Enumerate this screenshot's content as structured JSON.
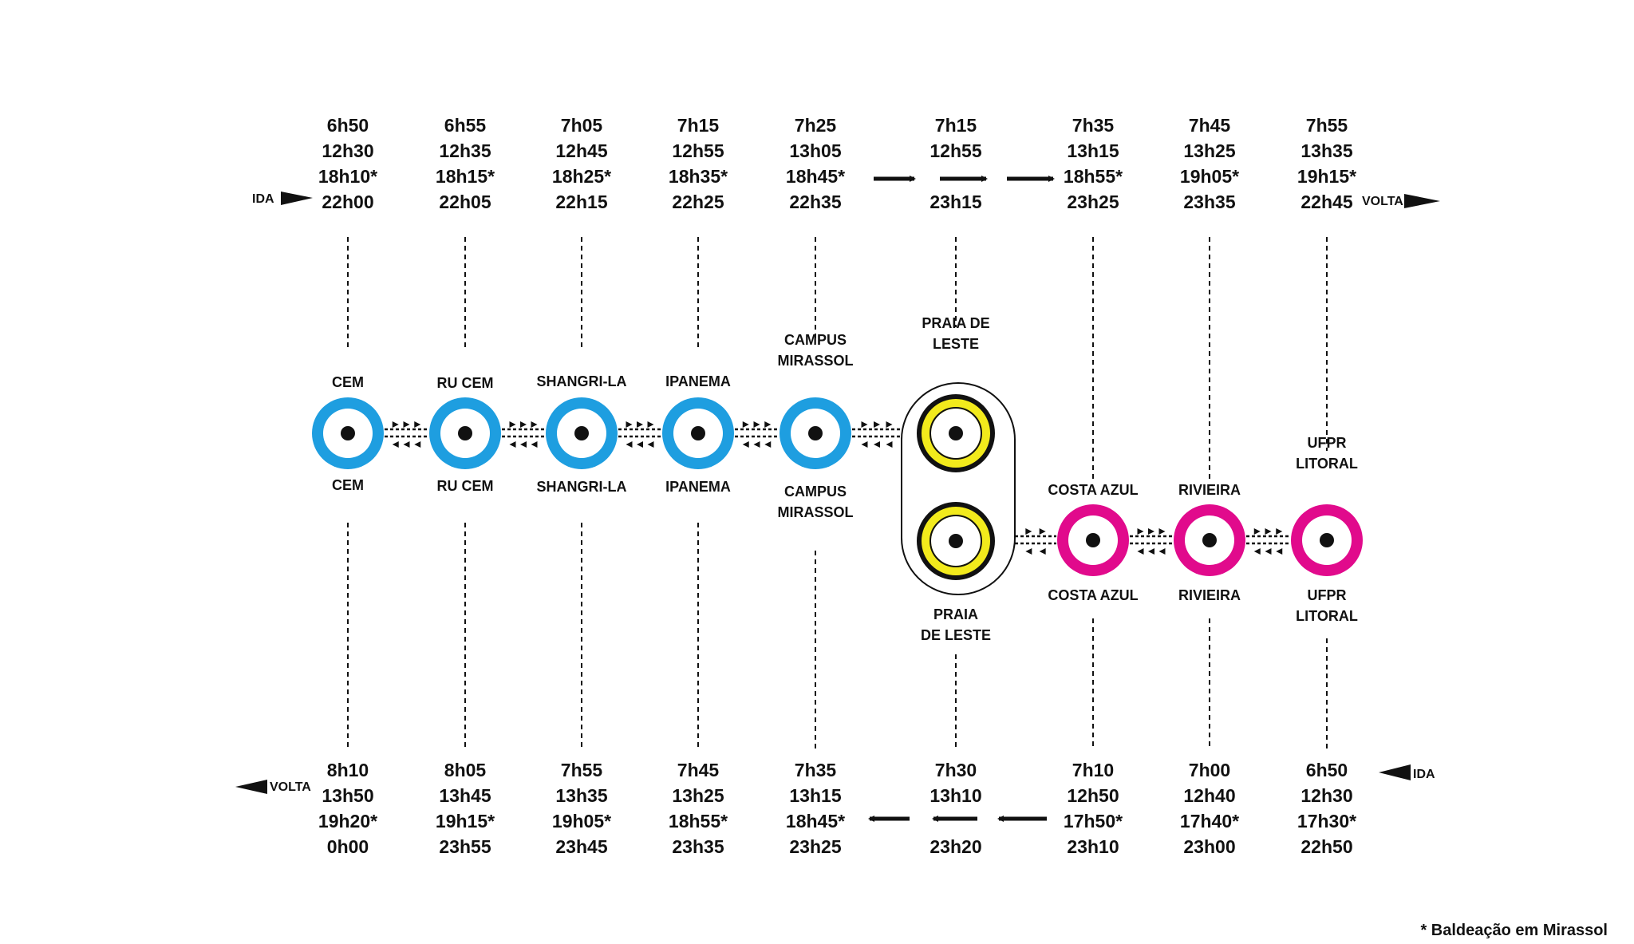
{
  "colors": {
    "blue": "#1e9ee0",
    "yellow": "#f2ea1c",
    "magenta": "#e10a8c",
    "ink": "#111111",
    "background": "#ffffff"
  },
  "direction_labels": {
    "top_left": "IDA",
    "top_right": "VOLTA",
    "bottom_left": "VOLTA",
    "bottom_right": "IDA"
  },
  "footnote": "* Baldeação em Mirassol",
  "stations": [
    {
      "id": "cem",
      "color": "blue",
      "top_label": [
        "CEM"
      ],
      "bottom_label": [
        "CEM"
      ],
      "times_top": [
        "6h50",
        "12h30",
        "18h10*",
        "22h00"
      ],
      "times_bottom": [
        "8h10",
        "13h50",
        "19h20*",
        "0h00"
      ]
    },
    {
      "id": "ru-cem",
      "color": "blue",
      "top_label": [
        "RU CEM"
      ],
      "bottom_label": [
        "RU CEM"
      ],
      "times_top": [
        "6h55",
        "12h35",
        "18h15*",
        "22h05"
      ],
      "times_bottom": [
        "8h05",
        "13h45",
        "19h15*",
        "23h55"
      ]
    },
    {
      "id": "shangri-la",
      "color": "blue",
      "top_label": [
        "SHANGRI-LA"
      ],
      "bottom_label": [
        "SHANGRI-LA"
      ],
      "times_top": [
        "7h05",
        "12h45",
        "18h25*",
        "22h15"
      ],
      "times_bottom": [
        "7h55",
        "13h35",
        "19h05*",
        "23h45"
      ]
    },
    {
      "id": "ipanema",
      "color": "blue",
      "top_label": [
        "IPANEMA"
      ],
      "bottom_label": [
        "IPANEMA"
      ],
      "times_top": [
        "7h15",
        "12h55",
        "18h35*",
        "22h25"
      ],
      "times_bottom": [
        "7h45",
        "13h25",
        "18h55*",
        "23h35"
      ]
    },
    {
      "id": "campus-mirassol",
      "color": "blue",
      "top_label": [
        "CAMPUS",
        "MIRASSOL"
      ],
      "bottom_label": [
        "CAMPUS",
        "MIRASSOL"
      ],
      "times_top": [
        "7h25",
        "13h05",
        "18h45*",
        "22h35"
      ],
      "times_bottom": [
        "7h35",
        "13h15",
        "18h45*",
        "23h25"
      ]
    },
    {
      "id": "praia-de-leste",
      "color": "yellow",
      "top_label": [
        "PRAIA DE",
        "LESTE"
      ],
      "bottom_label": [
        "PRAIA",
        "DE LESTE"
      ],
      "times_top": [
        "7h15",
        "12h55",
        "",
        "23h15"
      ],
      "times_bottom": [
        "7h30",
        "13h10",
        "",
        "23h20"
      ]
    },
    {
      "id": "costa-azul",
      "color": "magenta",
      "top_label": [
        "COSTA AZUL"
      ],
      "bottom_label": [
        "COSTA AZUL"
      ],
      "times_top": [
        "7h35",
        "13h15",
        "18h55*",
        "23h25"
      ],
      "times_bottom": [
        "7h10",
        "12h50",
        "17h50*",
        "23h10"
      ]
    },
    {
      "id": "rivieira",
      "color": "magenta",
      "top_label": [
        "RIVIEIRA"
      ],
      "bottom_label": [
        "RIVIEIRA"
      ],
      "times_top": [
        "7h45",
        "13h25",
        "19h05*",
        "23h35"
      ],
      "times_bottom": [
        "7h00",
        "12h40",
        "17h40*",
        "23h00"
      ]
    },
    {
      "id": "ufpr-litoral",
      "color": "magenta",
      "top_label": [
        "UFPR",
        "LITORAL"
      ],
      "bottom_label": [
        "UFPR",
        "LITORAL"
      ],
      "times_top": [
        "7h55",
        "13h35",
        "19h15*",
        "22h45"
      ],
      "times_bottom": [
        "6h50",
        "12h30",
        "17h30*",
        "22h50"
      ]
    }
  ]
}
